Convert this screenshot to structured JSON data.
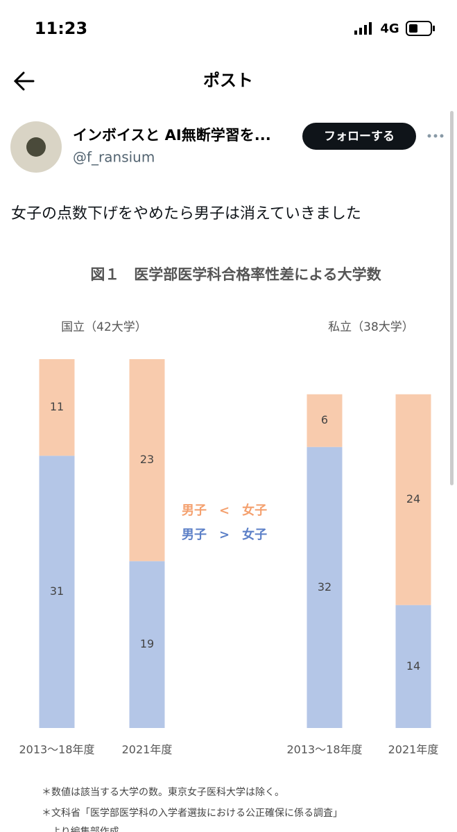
{
  "status_bar": {
    "time": "11:23",
    "network": "4G"
  },
  "header": {
    "title": "ポスト"
  },
  "post": {
    "author_name": "インボイスと AI無断学習を...",
    "handle": "@f_ransium",
    "follow_button": "フォローする",
    "text": "女子の点数下げをやめたら男子は消えていきました"
  },
  "chart_data": {
    "type": "stacked-bar",
    "title": "図１　医学部医学科合格率性差による大学数",
    "legend": [
      "男子　<　女子",
      "男子　>　女子"
    ],
    "groups": [
      {
        "label": "国立（42大学）",
        "categories": [
          "2013〜18年度",
          "2021年度"
        ],
        "series": [
          {
            "name": "男子 > 女子",
            "color": "#b4c6e7",
            "values": [
              31,
              19
            ]
          },
          {
            "name": "男子 < 女子",
            "color": "#f8cbad",
            "values": [
              11,
              23
            ]
          }
        ]
      },
      {
        "label": "私立（38大学）",
        "categories": [
          "2013〜18年度",
          "2021年度"
        ],
        "series": [
          {
            "name": "男子 > 女子",
            "color": "#b4c6e7",
            "values": [
              32,
              14
            ]
          },
          {
            "name": "男子 < 女子",
            "color": "#f8cbad",
            "values": [
              6,
              24
            ]
          }
        ]
      }
    ],
    "notes": [
      "＊数値は該当する大学の数。東京女子医科大学は除く。",
      "＊文科省「医学部医学科の入学者選抜における公正確保に係る調査」",
      "　より編集部作成"
    ]
  }
}
